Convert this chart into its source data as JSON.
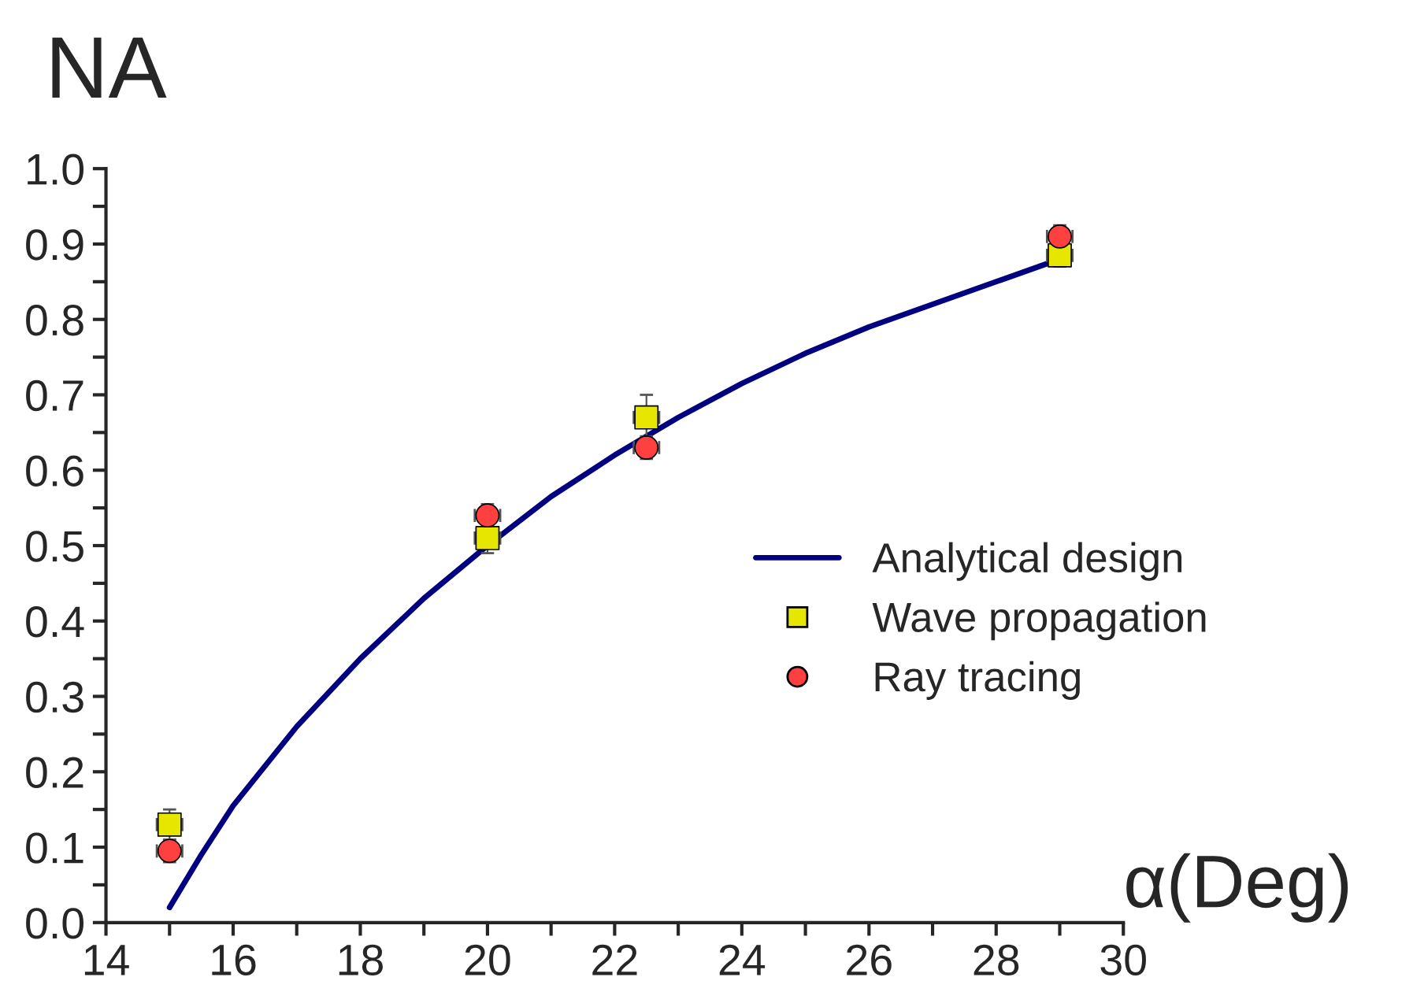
{
  "chart_data": {
    "type": "line",
    "ylabel": "NA",
    "xlabel": "α(Deg)",
    "xlim": [
      14,
      30
    ],
    "ylim": [
      0,
      1.0
    ],
    "xticks": [
      14,
      {
        "value": 15,
        "label": null
      },
      16,
      {
        "value": 17,
        "label": null
      },
      18,
      {
        "value": 19,
        "label": null
      },
      20,
      {
        "value": 21,
        "label": null
      },
      22,
      {
        "value": 23,
        "label": null
      },
      24,
      {
        "value": 25,
        "label": null
      },
      26,
      {
        "value": 27,
        "label": null
      },
      28,
      {
        "value": 29,
        "label": null
      },
      30
    ],
    "yticks": [
      {
        "value": 0,
        "label": "0.0"
      },
      {
        "value": 0.05,
        "label": null
      },
      0.1,
      {
        "value": 0.15,
        "label": null
      },
      0.2,
      {
        "value": 0.25,
        "label": null
      },
      0.3,
      {
        "value": 0.35,
        "label": null
      },
      0.4,
      {
        "value": 0.45,
        "label": null
      },
      0.5,
      {
        "value": 0.55,
        "label": null
      },
      0.6,
      {
        "value": 0.65,
        "label": null
      },
      0.7,
      {
        "value": 0.75,
        "label": null
      },
      0.8,
      {
        "value": 0.85,
        "label": null
      },
      0.9,
      {
        "value": 0.95,
        "label": null
      },
      {
        "value": 1.0,
        "label": "1.0"
      }
    ],
    "legend": "right",
    "grid": false,
    "series": [
      {
        "name": "Analytical design",
        "color": "#000080",
        "marker": "none",
        "x": [
          15,
          15.5,
          16,
          17,
          18,
          19,
          20,
          21,
          22,
          23,
          24,
          25,
          26,
          27,
          28,
          29
        ],
        "values": [
          0.02,
          0.09,
          0.155,
          0.26,
          0.35,
          0.43,
          0.5,
          0.565,
          0.62,
          0.67,
          0.715,
          0.755,
          0.79,
          0.82,
          0.85,
          0.88
        ]
      },
      {
        "name": "Wave propagation",
        "type": "scatter",
        "color": "#e6e600",
        "marker": "square",
        "x": [
          15,
          20,
          22.5,
          29
        ],
        "values": [
          0.13,
          0.51,
          0.67,
          0.885
        ],
        "errors": [
          0.02,
          0.02,
          0.03,
          0.015
        ],
        "xerrors": [
          0.2,
          0.2,
          0.2,
          0.2
        ]
      },
      {
        "name": "Ray tracing",
        "type": "scatter",
        "color": "#ff4040",
        "marker": "circle",
        "x": [
          15,
          20,
          22.5,
          29
        ],
        "values": [
          0.095,
          0.54,
          0.63,
          0.91
        ],
        "errors": [
          0.015,
          0.015,
          0.015,
          0.015
        ],
        "xerrors": [
          0.2,
          0.2,
          0.2,
          0.2
        ]
      }
    ]
  }
}
